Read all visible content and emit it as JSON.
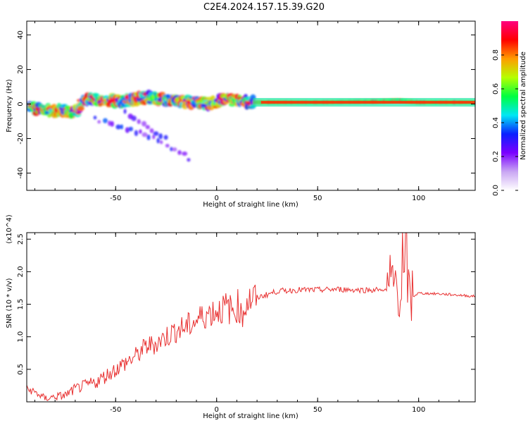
{
  "title": "C2E4.2024.157.15.39.G20",
  "colors": {
    "snr_line": "#e83030",
    "axis": "#000000",
    "background": "#ffffff"
  },
  "chart_data": [
    {
      "type": "heatmap",
      "xlabel": "Height of straight line (km)",
      "ylabel": "Frequency (Hz)",
      "xlim": [
        -94,
        128
      ],
      "ylim": [
        -50,
        48
      ],
      "xticks": [
        -50,
        0,
        50,
        100
      ],
      "yticks": [
        -40,
        -20,
        0,
        20,
        40
      ],
      "grid": false,
      "colorbar": {
        "label": "Normalized spectral amplitude",
        "range": [
          0,
          1
        ],
        "ticks": [
          "0.0",
          "0.2",
          "0.4",
          "0.6",
          "0.8"
        ],
        "colormap": [
          "#ffffff",
          "#c9a6f3",
          "#7a00ff",
          "#0a20ff",
          "#00e7f4",
          "#00ff40",
          "#b6ff00",
          "#ff9c00",
          "#ff0000",
          "#ff007f"
        ]
      },
      "tracks": [
        {
          "name": "main",
          "points": [
            [
              -93,
              -2
            ],
            [
              -85,
              -4
            ],
            [
              -75,
              -4
            ],
            [
              -70,
              -5
            ],
            [
              -65,
              3
            ],
            [
              -55,
              2
            ],
            [
              -45,
              2
            ],
            [
              -35,
              4
            ],
            [
              -28,
              3
            ],
            [
              -20,
              2
            ],
            [
              -12,
              1
            ],
            [
              -5,
              0
            ],
            [
              0,
              1
            ],
            [
              5,
              3
            ],
            [
              10,
              2
            ],
            [
              15,
              1
            ],
            [
              25,
              1
            ],
            [
              50,
              1
            ],
            [
              80,
              1.5
            ],
            [
              90,
              2
            ],
            [
              100,
              1
            ],
            [
              128,
              1
            ]
          ]
        },
        {
          "name": "chirp-upper",
          "points": [
            [
              -60,
              -9
            ],
            [
              -50,
              -12
            ],
            [
              -40,
              -16
            ],
            [
              -30,
              -20
            ],
            [
              -25,
              -24
            ],
            [
              -20,
              -26
            ],
            [
              -15,
              -30
            ],
            [
              -12,
              -34
            ]
          ]
        },
        {
          "name": "chirp-lower",
          "points": [
            [
              -45,
              -5
            ],
            [
              -40,
              -8
            ],
            [
              -35,
              -12
            ],
            [
              -30,
              -16
            ],
            [
              -25,
              -20
            ]
          ]
        }
      ]
    },
    {
      "type": "line",
      "xlabel": "Height of straight line (km)",
      "ylabel": "SNR (10 * v/v)",
      "y_multiplier": "(x10^4)",
      "xlim": [
        -94,
        128
      ],
      "ylim": [
        0,
        2.6
      ],
      "xticks": [
        -50,
        0,
        50,
        100
      ],
      "yticks": [
        0.5,
        1.0,
        1.5,
        2.0,
        2.5
      ],
      "ytick_labels": [
        "0.5",
        "1.0",
        "1.5",
        "2.0",
        "2.5"
      ],
      "grid": false,
      "series": [
        {
          "x": [
            -94,
            -90,
            -85,
            -80,
            -75,
            -70,
            -65,
            -60,
            -55,
            -50,
            -45,
            -40,
            -35,
            -30,
            -25,
            -20,
            -15,
            -10,
            -5,
            0,
            5,
            8,
            10,
            11,
            12,
            15,
            20,
            25,
            30,
            40,
            50,
            60,
            70,
            80,
            85,
            88,
            90,
            91,
            92,
            93,
            94,
            95,
            96,
            100,
            110,
            120,
            128
          ],
          "y": [
            0.2,
            0.15,
            0.05,
            0.08,
            0.1,
            0.2,
            0.25,
            0.3,
            0.4,
            0.5,
            0.6,
            0.7,
            0.85,
            0.9,
            1.0,
            1.1,
            1.15,
            1.25,
            1.35,
            1.4,
            1.45,
            1.4,
            1.45,
            1.5,
            1.3,
            1.55,
            1.6,
            1.65,
            1.7,
            1.72,
            1.72,
            1.73,
            1.72,
            1.72,
            1.72,
            1.8,
            1.9,
            1.5,
            2.2,
            1.6,
            2.5,
            1.5,
            1.6,
            1.67,
            1.66,
            1.64,
            1.62
          ]
        }
      ]
    }
  ]
}
